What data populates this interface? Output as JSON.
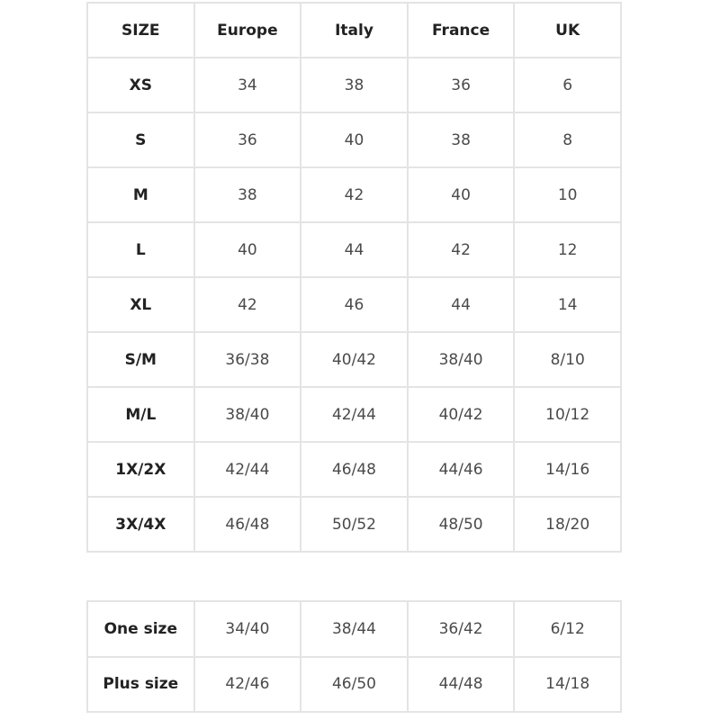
{
  "size_table": {
    "headers": [
      "SIZE",
      "Europe",
      "Italy",
      "France",
      "UK"
    ],
    "rows": [
      [
        "XS",
        "34",
        "38",
        "36",
        "6"
      ],
      [
        "S",
        "36",
        "40",
        "38",
        "8"
      ],
      [
        "M",
        "38",
        "42",
        "40",
        "10"
      ],
      [
        "L",
        "40",
        "44",
        "42",
        "12"
      ],
      [
        "XL",
        "42",
        "46",
        "44",
        "14"
      ],
      [
        "S/M",
        "36/38",
        "40/42",
        "38/40",
        "8/10"
      ],
      [
        "M/L",
        "38/40",
        "42/44",
        "40/42",
        "10/12"
      ],
      [
        "1X/2X",
        "42/44",
        "46/48",
        "44/46",
        "14/16"
      ],
      [
        "3X/4X",
        "46/48",
        "50/52",
        "48/50",
        "18/20"
      ]
    ]
  },
  "extra_table": {
    "rows": [
      [
        "One size",
        "34/40",
        "38/44",
        "36/42",
        "6/12"
      ],
      [
        "Plus size",
        "42/46",
        "46/50",
        "44/48",
        "14/18"
      ]
    ]
  },
  "colors": {
    "border": "#e4e4e4",
    "header_text": "#222222",
    "value_text": "#4a4a4a"
  }
}
